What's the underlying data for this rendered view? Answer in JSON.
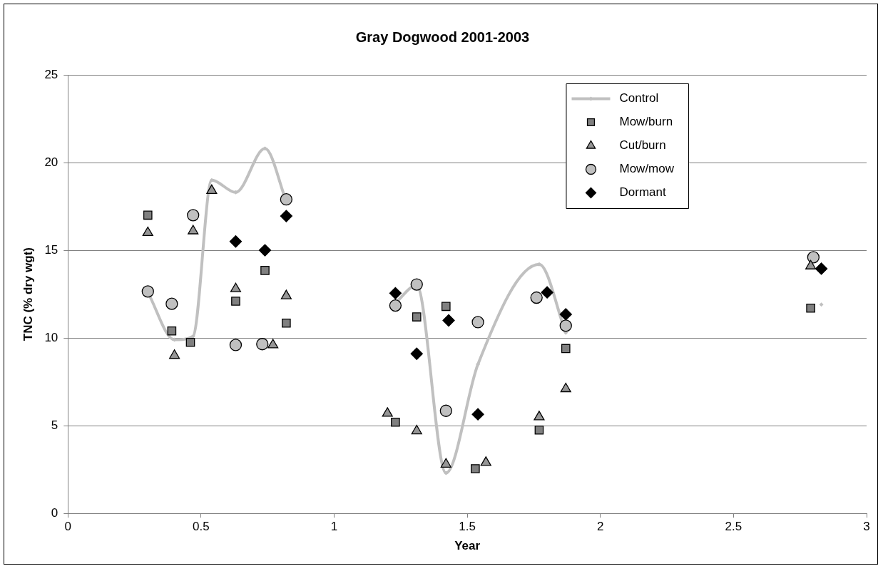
{
  "chart_data": {
    "type": "scatter",
    "title": "Gray Dogwood 2001-2003",
    "xlabel": "Year",
    "ylabel": "TNC (% dry wgt)",
    "xlim": [
      0,
      3
    ],
    "xticks": [
      0,
      0.5,
      1,
      1.5,
      2,
      2.5,
      3
    ],
    "ylim": [
      0,
      25
    ],
    "yticks": [
      0,
      5,
      10,
      15,
      20,
      25
    ],
    "grid": "y",
    "legend": "top right",
    "series": [
      {
        "name": "Control",
        "type": "line",
        "color": "#c0c0c0",
        "marker": "diamond",
        "x": [
          0.3,
          0.4,
          0.47,
          0.54,
          0.63,
          0.74,
          0.82,
          1.0,
          1.23,
          1.31,
          1.42,
          1.54,
          1.77,
          1.87,
          2.3,
          2.83
        ],
        "values": [
          12.6,
          9.9,
          10.1,
          19.0,
          18.3,
          20.8,
          17.8,
          null,
          12.0,
          13.0,
          2.3,
          8.5,
          14.2,
          10.3,
          null,
          11.9
        ]
      },
      {
        "name": "Mow/burn",
        "color": "#808080",
        "marker": "square",
        "x": [
          0.3,
          0.39,
          0.46,
          0.63,
          0.74,
          0.82,
          1.23,
          1.31,
          1.42,
          1.53,
          1.77,
          1.87,
          2.79
        ],
        "values": [
          17.0,
          10.4,
          9.75,
          12.1,
          13.85,
          10.85,
          5.2,
          11.2,
          11.8,
          2.55,
          4.75,
          9.4,
          11.7
        ]
      },
      {
        "name": "Cut/burn",
        "color": "#969696",
        "marker": "triangle",
        "x": [
          0.3,
          0.4,
          0.47,
          0.54,
          0.63,
          0.77,
          0.82,
          1.2,
          1.31,
          1.42,
          1.57,
          1.77,
          1.87,
          2.79
        ],
        "values": [
          16.0,
          9.0,
          16.1,
          18.4,
          12.8,
          9.6,
          12.4,
          5.7,
          4.7,
          2.8,
          2.9,
          5.5,
          7.1,
          14.1
        ]
      },
      {
        "name": "Mow/mow",
        "color": "#c0c0c0",
        "marker": "circle",
        "x": [
          0.3,
          0.39,
          0.47,
          0.63,
          0.73,
          0.82,
          1.23,
          1.31,
          1.42,
          1.54,
          1.76,
          1.87,
          2.8
        ],
        "values": [
          12.65,
          11.95,
          17.0,
          9.6,
          9.65,
          17.9,
          11.85,
          13.05,
          5.85,
          10.9,
          12.3,
          10.7,
          14.6
        ]
      },
      {
        "name": "Dormant",
        "color": "#000000",
        "marker": "diamond",
        "x": [
          0.63,
          0.74,
          0.82,
          1.23,
          1.31,
          1.43,
          1.54,
          1.8,
          1.87,
          2.83
        ],
        "values": [
          15.5,
          15.0,
          16.95,
          12.55,
          9.1,
          11.0,
          5.65,
          12.6,
          11.35,
          13.95
        ]
      }
    ]
  }
}
